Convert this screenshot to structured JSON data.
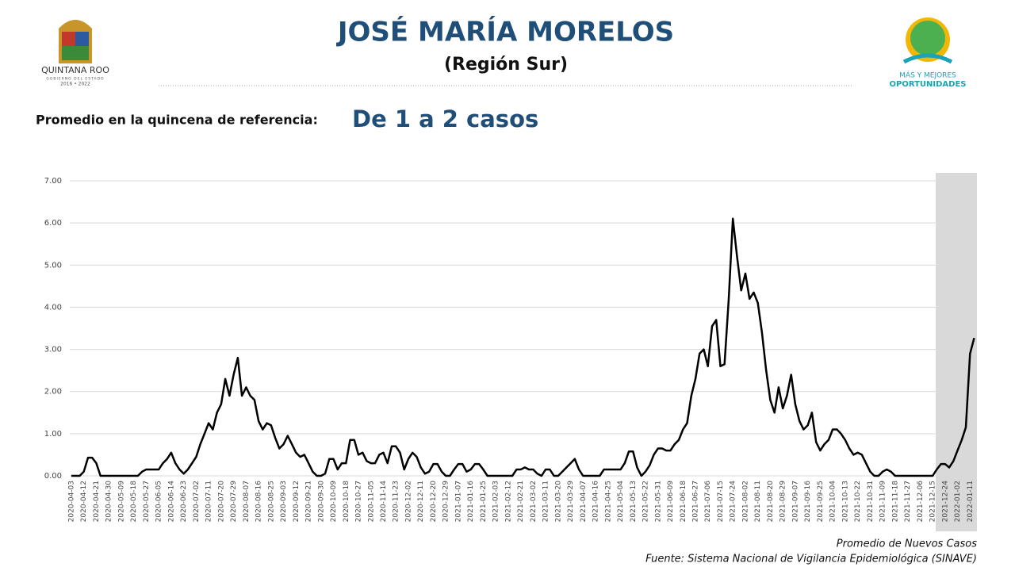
{
  "header": {
    "logo_left": {
      "name": "QUINTANA ROO",
      "sub": "GOBIERNO DEL ESTADO",
      "years": "2016 • 2022"
    },
    "title": "JOSÉ MARÍA MORELOS",
    "subtitle": "(Región Sur)",
    "logo_right": {
      "line1": "MÁS Y MEJORES",
      "line2": "OPORTUNIDADES"
    }
  },
  "summary": {
    "label": "Promedio en la quincena de referencia:",
    "value": "De 1 a 2 casos"
  },
  "chart_data": {
    "type": "line",
    "color": "#000000",
    "grid": true,
    "ylim": [
      0,
      7
    ],
    "yticks": [
      {
        "value": 0,
        "label": "0.00"
      },
      {
        "value": 1,
        "label": "1.00"
      },
      {
        "value": 2,
        "label": "2.00"
      },
      {
        "value": 3,
        "label": "3.00"
      },
      {
        "value": 4,
        "label": "4.00"
      },
      {
        "value": 5,
        "label": "5.00"
      },
      {
        "value": 6,
        "label": "6.00"
      },
      {
        "value": 7,
        "label": "7.00"
      }
    ],
    "x": [
      "2020-04-03",
      null,
      null,
      "2020-04-12",
      null,
      null,
      "2020-04-21",
      null,
      null,
      "2020-04-30",
      null,
      null,
      "2020-05-09",
      null,
      null,
      "2020-05-18",
      null,
      null,
      "2020-05-27",
      null,
      null,
      "2020-06-05",
      null,
      null,
      "2020-06-14",
      null,
      null,
      "2020-06-23",
      null,
      null,
      "2020-07-02",
      null,
      null,
      "2020-07-11",
      null,
      null,
      "2020-07-20",
      null,
      null,
      "2020-07-29",
      null,
      null,
      "2020-08-07",
      null,
      null,
      "2020-08-16",
      null,
      null,
      "2020-08-25",
      null,
      null,
      "2020-09-03",
      null,
      null,
      "2020-09-12",
      null,
      null,
      "2020-09-21",
      null,
      null,
      "2020-09-30",
      null,
      null,
      "2020-10-09",
      null,
      null,
      "2020-10-18",
      null,
      null,
      "2020-10-27",
      null,
      null,
      "2020-11-05",
      null,
      null,
      "2020-11-14",
      null,
      null,
      "2020-11-23",
      null,
      null,
      "2020-12-02",
      null,
      null,
      "2020-12-11",
      null,
      null,
      "2020-12-20",
      null,
      null,
      "2020-12-29",
      null,
      null,
      "2021-01-07",
      null,
      null,
      "2021-01-16",
      null,
      null,
      "2021-01-25",
      null,
      null,
      "2021-02-03",
      null,
      null,
      "2021-02-12",
      null,
      null,
      "2021-02-21",
      null,
      null,
      "2021-03-02",
      null,
      null,
      "2021-03-11",
      null,
      null,
      "2021-03-20",
      null,
      null,
      "2021-03-29",
      null,
      null,
      "2021-04-07",
      null,
      null,
      "2021-04-16",
      null,
      null,
      "2021-04-25",
      null,
      null,
      "2021-05-04",
      null,
      null,
      "2021-05-13",
      null,
      null,
      "2021-05-22",
      null,
      null,
      "2021-05-31",
      null,
      null,
      "2021-06-09",
      null,
      null,
      "2021-06-18",
      null,
      null,
      "2021-06-27",
      null,
      null,
      "2021-07-06",
      null,
      null,
      "2021-07-15",
      null,
      null,
      "2021-07-24",
      null,
      null,
      "2021-08-02",
      null,
      null,
      "2021-08-11",
      null,
      null,
      "2021-08-20",
      null,
      null,
      "2021-08-29",
      null,
      null,
      "2021-09-07",
      null,
      null,
      "2021-09-16",
      null,
      null,
      "2021-09-25",
      null,
      null,
      "2021-10-04",
      null,
      null,
      "2021-10-13",
      null,
      null,
      "2021-10-22",
      null,
      null,
      "2021-10-31",
      null,
      null,
      "2021-11-09",
      null,
      null,
      "2021-11-18",
      null,
      null,
      "2021-11-27",
      null,
      null,
      "2021-12-06",
      null,
      null,
      "2021-12-15",
      null,
      null,
      "2021-12-24",
      null,
      null,
      "2022-01-02",
      null,
      null,
      "2022-01-11",
      null
    ],
    "values": [
      0,
      0,
      0,
      0.1,
      0.43,
      0.43,
      0.3,
      0,
      0,
      0,
      0,
      0,
      0,
      0,
      0,
      0,
      0,
      0.1,
      0.15,
      0.15,
      0.15,
      0.15,
      0.3,
      0.4,
      0.55,
      0.3,
      0.15,
      0.05,
      0.15,
      0.3,
      0.45,
      0.75,
      1.0,
      1.25,
      1.1,
      1.5,
      1.7,
      2.3,
      1.9,
      2.4,
      2.8,
      1.9,
      2.1,
      1.9,
      1.8,
      1.3,
      1.1,
      1.25,
      1.2,
      0.9,
      0.65,
      0.75,
      0.95,
      0.75,
      0.55,
      0.45,
      0.5,
      0.3,
      0.1,
      0,
      0,
      0.05,
      0.4,
      0.4,
      0.15,
      0.3,
      0.3,
      0.85,
      0.85,
      0.5,
      0.55,
      0.35,
      0.3,
      0.3,
      0.5,
      0.55,
      0.3,
      0.7,
      0.7,
      0.55,
      0.15,
      0.4,
      0.55,
      0.45,
      0.2,
      0.05,
      0.1,
      0.28,
      0.28,
      0.1,
      0,
      0,
      0.15,
      0.28,
      0.28,
      0.1,
      0.15,
      0.28,
      0.28,
      0.15,
      0,
      0,
      0,
      0,
      0,
      0,
      0,
      0.15,
      0.15,
      0.2,
      0.15,
      0.15,
      0.05,
      0,
      0.15,
      0.15,
      0,
      0,
      0.1,
      0.2,
      0.3,
      0.4,
      0.15,
      0,
      0,
      0,
      0,
      0,
      0.15,
      0.15,
      0.15,
      0.15,
      0.15,
      0.3,
      0.58,
      0.58,
      0.2,
      0,
      0.1,
      0.25,
      0.5,
      0.65,
      0.65,
      0.6,
      0.6,
      0.75,
      0.85,
      1.1,
      1.25,
      1.9,
      2.3,
      2.9,
      3.0,
      2.6,
      3.55,
      3.7,
      2.6,
      2.65,
      4.2,
      6.1,
      5.2,
      4.4,
      4.8,
      4.2,
      4.35,
      4.1,
      3.4,
      2.5,
      1.8,
      1.5,
      2.1,
      1.6,
      1.9,
      2.4,
      1.7,
      1.3,
      1.1,
      1.2,
      1.5,
      0.8,
      0.6,
      0.75,
      0.85,
      1.1,
      1.1,
      1.0,
      0.85,
      0.65,
      0.5,
      0.55,
      0.5,
      0.3,
      0.1,
      0,
      0,
      0.1,
      0.15,
      0.1,
      0,
      0,
      0,
      0,
      0,
      0,
      0,
      0,
      0,
      0,
      0.15,
      0.28,
      0.28,
      0.2,
      0.35,
      0.6,
      0.85,
      1.15,
      2.9,
      3.27
    ],
    "notes": [
      "Promedio de Nuevos Casos",
      "Fuente: Sistema Nacional de Vigilancia Epidemiológica (SINAVE)"
    ]
  }
}
